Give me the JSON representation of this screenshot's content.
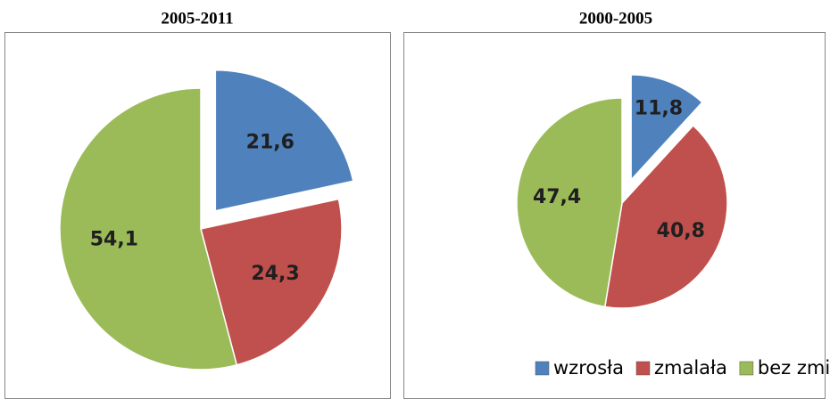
{
  "legend": {
    "names": [
      "wzrosła",
      "zmalała",
      "bez zmian"
    ],
    "colors": [
      "#4f81bd",
      "#c0504d",
      "#9bbb59"
    ]
  },
  "chart_data": [
    {
      "type": "pie",
      "title": "2005-2011",
      "values": [
        21.6,
        24.3,
        54.1
      ],
      "value_labels": [
        "21,6",
        "24,3",
        "54,1"
      ]
    },
    {
      "type": "pie",
      "title": "2000-2005",
      "values": [
        11.8,
        40.8,
        47.4
      ],
      "value_labels": [
        "11,8",
        "40,8",
        "47,4"
      ]
    }
  ]
}
